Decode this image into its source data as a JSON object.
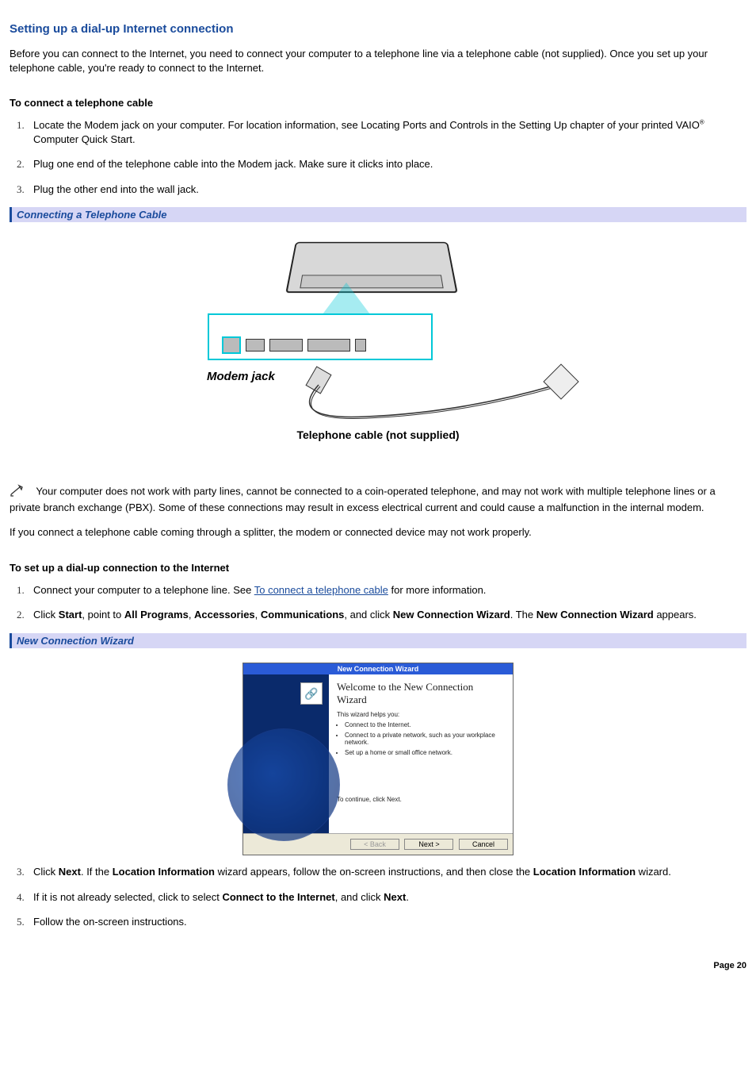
{
  "title": "Setting up a dial-up Internet connection",
  "intro": "Before you can connect to the Internet, you need to connect your computer to a telephone line via a telephone cable (not supplied). Once you set up your telephone cable, you're ready to connect to the Internet.",
  "sectionA": {
    "heading": "To connect a telephone cable",
    "steps": [
      "Locate the Modem jack on your computer. For location information, see Locating Ports and Controls in the Setting Up chapter of your printed VAIO® Computer Quick Start.",
      "Plug one end of the telephone cable into the Modem jack. Make sure it clicks into place.",
      "Plug the other end into the wall jack."
    ]
  },
  "figure1": {
    "caption": "Connecting a Telephone Cable",
    "modem_label": "Modem jack",
    "cable_label": "Telephone cable (not supplied)",
    "accent_color": "#00c8d8"
  },
  "warning": "Your computer does not work with party lines, cannot be connected to a coin-operated telephone, and may not work with multiple telephone lines or a private branch exchange (PBX). Some of these connections may result in excess electrical current and could cause a malfunction in the internal modem.",
  "splitter_note": "If you connect a telephone cable coming through a splitter, the modem or connected device may not work properly.",
  "sectionB": {
    "heading": "To set up a dial-up connection to the Internet",
    "step1_pre": "Connect your computer to a telephone line. See ",
    "step1_link": "To connect a telephone cable",
    "step1_post": " for more information.",
    "step2_parts": [
      "Click ",
      "Start",
      ", point to ",
      "All Programs",
      ", ",
      "Accessories",
      ", ",
      "Communications",
      ", and click ",
      "New Connection Wizard",
      ". The ",
      "New Connection Wizard",
      " appears."
    ],
    "step3_parts": [
      "Click ",
      "Next",
      ". If the ",
      "Location Information",
      " wizard appears, follow the on-screen instructions, and then close the ",
      "Location Information",
      " wizard."
    ],
    "step4_parts": [
      "If it is not already selected, click to select ",
      "Connect to the Internet",
      ", and click ",
      "Next",
      "."
    ],
    "step5": "Follow the on-screen instructions."
  },
  "figure2": {
    "caption": "New Connection Wizard",
    "dialog_title": "New Connection Wizard",
    "welcome": "Welcome to the New Connection Wizard",
    "helps": "This wizard helps you:",
    "bullets": [
      "Connect to the Internet.",
      "Connect to a private network, such as your workplace network.",
      "Set up a home or small office network."
    ],
    "continue_text": "To continue, click Next.",
    "btn_back": "< Back",
    "btn_next": "Next >",
    "btn_cancel": "Cancel"
  },
  "page_label": "Page 20",
  "colors": {
    "heading": "#1a4b9c",
    "caption_bg": "#d6d6f5",
    "wizard_titlebar": "#2a5bd7",
    "wizard_body_bg": "#ece9d8",
    "wizard_side_bg": "#0a2a6b"
  }
}
